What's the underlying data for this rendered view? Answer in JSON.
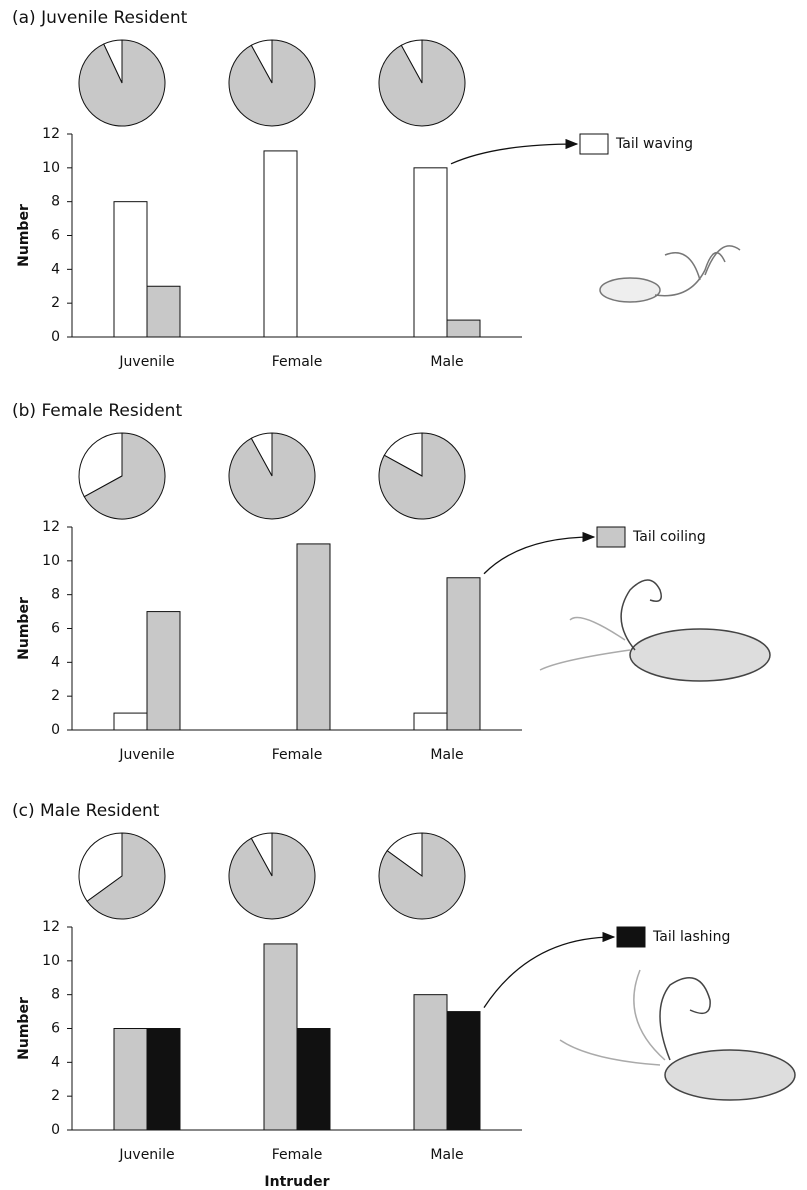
{
  "chart_data": [
    {
      "type": "bar",
      "title": "(a) Juvenile Resident",
      "ylabel": "Number",
      "categories": [
        "Juvenile",
        "Female",
        "Male"
      ],
      "series": [
        {
          "name": "Tail waving",
          "color": "#ffffff",
          "values": [
            8,
            11,
            10
          ]
        },
        {
          "color": "#c8c8c8",
          "values": [
            3,
            0,
            1
          ]
        }
      ],
      "pies": [
        [
          7,
          93
        ],
        [
          8,
          92
        ],
        [
          8,
          92
        ]
      ],
      "pie_colors": [
        "#ffffff",
        "#c8c8c8"
      ],
      "ylim": [
        0,
        12
      ],
      "yticks": [
        0,
        2,
        4,
        6,
        8,
        10,
        12
      ]
    },
    {
      "type": "bar",
      "title": "(b) Female Resident",
      "ylabel": "Number",
      "categories": [
        "Juvenile",
        "Female",
        "Male"
      ],
      "series": [
        {
          "color": "#ffffff",
          "values": [
            1,
            0,
            1
          ]
        },
        {
          "name": "Tail coiling",
          "color": "#c8c8c8",
          "values": [
            7,
            11,
            9
          ]
        }
      ],
      "pies": [
        [
          33,
          67
        ],
        [
          8,
          92
        ],
        [
          17,
          83
        ]
      ],
      "pie_colors": [
        "#ffffff",
        "#c8c8c8"
      ],
      "ylim": [
        0,
        12
      ],
      "yticks": [
        0,
        2,
        4,
        6,
        8,
        10,
        12
      ]
    },
    {
      "type": "bar",
      "title": "(c) Male Resident",
      "ylabel": "Number",
      "xlabel": "Intruder",
      "categories": [
        "Juvenile",
        "Female",
        "Male"
      ],
      "series": [
        {
          "color": "#c8c8c8",
          "values": [
            6,
            11,
            8
          ]
        },
        {
          "name": "Tail lashing",
          "color": "#111111",
          "values": [
            6,
            6,
            7
          ]
        }
      ],
      "pies": [
        [
          35,
          65
        ],
        [
          8,
          92
        ],
        [
          15,
          85
        ]
      ],
      "pie_colors": [
        "#ffffff",
        "#c8c8c8"
      ],
      "ylim": [
        0,
        12
      ],
      "yticks": [
        0,
        2,
        4,
        6,
        8,
        10,
        12
      ]
    }
  ]
}
